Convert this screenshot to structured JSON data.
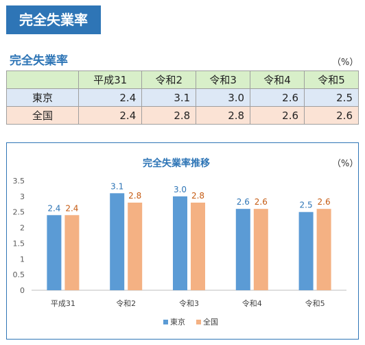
{
  "banner": {
    "title": "完全失業率"
  },
  "table_section": {
    "title": "完全失業率",
    "unit": "（%）",
    "columns": [
      "",
      "平成31",
      "令和2",
      "令和3",
      "令和4",
      "令和5"
    ],
    "rows": [
      {
        "label": "東京",
        "values": [
          "2.4",
          "3.1",
          "3.0",
          "2.6",
          "2.5"
        ]
      },
      {
        "label": "全国",
        "values": [
          "2.4",
          "2.8",
          "2.8",
          "2.6",
          "2.6"
        ]
      }
    ]
  },
  "chart_data": {
    "type": "bar",
    "title": "完全失業率推移",
    "unit": "（%）",
    "categories": [
      "平成31",
      "令和2",
      "令和3",
      "令和4",
      "令和5"
    ],
    "series": [
      {
        "name": "東京",
        "values": [
          2.4,
          3.1,
          3.0,
          2.6,
          2.5
        ],
        "labels": [
          "2.4",
          "3.1",
          "3.0",
          "2.6",
          "2.5"
        ],
        "color": "#5b9bd5"
      },
      {
        "name": "全国",
        "values": [
          2.4,
          2.8,
          2.8,
          2.6,
          2.6
        ],
        "labels": [
          "2.4",
          "2.8",
          "2.8",
          "2.6",
          "2.6"
        ],
        "color": "#f4b183"
      }
    ],
    "label_colors": [
      "#2e75b6",
      "#c55a11"
    ],
    "ylim": [
      0,
      3.5
    ],
    "yticks": [
      "0",
      "0.5",
      "1",
      "1.5",
      "2",
      "2.5",
      "3",
      "3.5"
    ],
    "xlabel": "",
    "ylabel": "",
    "grid": false,
    "legend_position": "bottom"
  }
}
